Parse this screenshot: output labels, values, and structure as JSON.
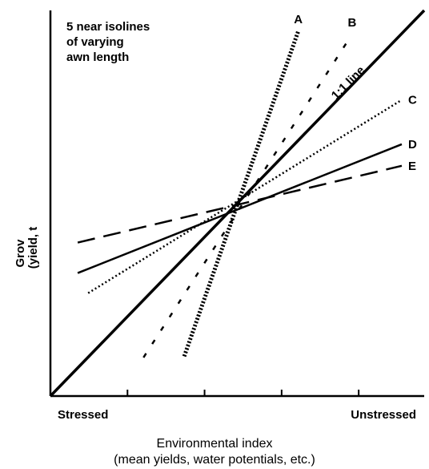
{
  "chart_data": {
    "type": "line",
    "title": "",
    "annotation": [
      "5 near isolines",
      "of varying",
      "awn length"
    ],
    "xlabel": [
      "Environmental index",
      "(mean yields, water potentials, etc.)"
    ],
    "ylabel": [
      "Grov",
      "(yield, t"
    ],
    "x_tick_labels": {
      "low": "Stressed",
      "high": "Unstressed"
    },
    "x_tick_count": 4,
    "xlim": [
      0,
      100
    ],
    "ylim": [
      0,
      100
    ],
    "reference_line": {
      "label": "1:1 line",
      "x": [
        0,
        100
      ],
      "y": [
        0,
        100
      ]
    },
    "series": [
      {
        "name": "A",
        "style": "heavy-dotted",
        "x": [
          35.8,
          66.3
        ],
        "y": [
          10.3,
          94.6
        ]
      },
      {
        "name": "B",
        "style": "short-dash",
        "x": [
          24.9,
          80.7
        ],
        "y": [
          10.0,
          93.8
        ]
      },
      {
        "name": "C",
        "style": "dotted",
        "x": [
          10.1,
          94.0
        ],
        "y": [
          26.7,
          76.8
        ]
      },
      {
        "name": "D",
        "style": "solid",
        "x": [
          7.3,
          94.0
        ],
        "y": [
          31.9,
          65.3
        ]
      },
      {
        "name": "E",
        "style": "long-dash",
        "x": [
          7.3,
          94.0
        ],
        "y": [
          39.8,
          59.7
        ]
      }
    ]
  }
}
